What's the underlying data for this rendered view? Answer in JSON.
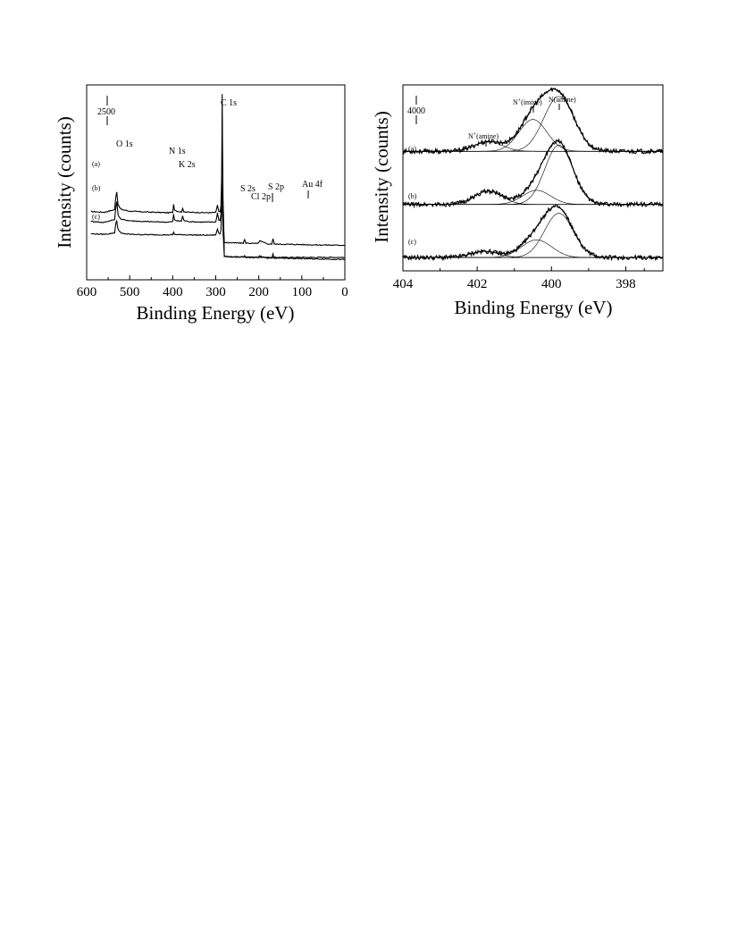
{
  "chart_data": [
    {
      "type": "line",
      "panel": "survey",
      "xlabel": "Binding Energy (eV)",
      "ylabel": "Intensity (counts)",
      "xlim": [
        600,
        0
      ],
      "x_reversed": true,
      "xticks": [
        600,
        500,
        400,
        300,
        200,
        100,
        0
      ],
      "scale_bar_label": "2500",
      "series": [
        {
          "name": "(a)",
          "x": [
            590,
            560,
            545,
            535,
            532,
            530,
            527,
            520,
            500,
            470,
            440,
            410,
            400,
            398,
            396,
            390,
            380,
            377,
            374,
            360,
            340,
            320,
            300,
            296,
            293,
            290,
            288,
            286,
            285,
            284,
            283,
            282,
            280,
            270,
            250,
            230,
            210,
            200,
            180,
            167,
            160,
            140,
            120,
            100,
            90,
            70,
            40,
            20,
            10,
            0
          ],
          "y": [
            2880,
            2830,
            2930,
            3000,
            3900,
            4150,
            3300,
            3020,
            2900,
            2860,
            2830,
            2800,
            2830,
            3350,
            3000,
            2900,
            2850,
            3050,
            2870,
            2830,
            2820,
            2800,
            2820,
            3300,
            2880,
            2860,
            3200,
            5200,
            10400,
            6200,
            3500,
            2600,
            0,
            -20,
            -30,
            -40,
            -40,
            -50,
            -60,
            -60,
            -60,
            -60,
            -60,
            -60,
            -60,
            -60,
            -60,
            -60,
            -60,
            -60
          ]
        },
        {
          "name": "(b)",
          "x": [
            590,
            560,
            545,
            535,
            532,
            530,
            527,
            520,
            500,
            470,
            440,
            410,
            400,
            398,
            396,
            390,
            380,
            377,
            374,
            360,
            340,
            320,
            300,
            296,
            293,
            290,
            288,
            286,
            285,
            284,
            283,
            282,
            280,
            270,
            250,
            236,
            233,
            230,
            210,
            202,
            198,
            180,
            170,
            167,
            164,
            140,
            120,
            100,
            90,
            70,
            40,
            20,
            10,
            0
          ],
          "y": [
            2250,
            2180,
            2300,
            2360,
            3200,
            3550,
            2650,
            2380,
            2290,
            2240,
            2220,
            2200,
            2230,
            2700,
            2350,
            2280,
            2260,
            2600,
            2300,
            2230,
            2210,
            2200,
            2210,
            2800,
            2350,
            2300,
            2700,
            4500,
            8600,
            5000,
            2700,
            1950,
            900,
            880,
            860,
            850,
            1080,
            860,
            830,
            830,
            1000,
            800,
            790,
            1150,
            790,
            780,
            770,
            760,
            750,
            740,
            730,
            720,
            720,
            720
          ]
        },
        {
          "name": "(c)",
          "x": [
            590,
            560,
            545,
            535,
            532,
            530,
            527,
            520,
            500,
            470,
            440,
            410,
            400,
            398,
            396,
            390,
            380,
            377,
            374,
            360,
            340,
            320,
            300,
            296,
            293,
            290,
            288,
            286,
            285,
            284,
            283,
            282,
            280,
            270,
            250,
            236,
            233,
            230,
            210,
            202,
            198,
            180,
            170,
            167,
            164,
            140,
            120,
            100,
            90,
            70,
            40,
            20,
            10,
            0
          ],
          "y": [
            1450,
            1420,
            1460,
            1520,
            2150,
            2250,
            1750,
            1480,
            1420,
            1400,
            1390,
            1380,
            1390,
            1540,
            1420,
            1400,
            1390,
            1400,
            1390,
            1380,
            1370,
            1360,
            1380,
            1750,
            1500,
            1450,
            1700,
            3000,
            6400,
            3300,
            1500,
            1000,
            0,
            -20,
            -40,
            -60,
            40,
            -60,
            -80,
            -80,
            20,
            -100,
            -110,
            140,
            -110,
            -120,
            -130,
            -140,
            -150,
            -160,
            -170,
            -180,
            -190,
            -200
          ]
        }
      ],
      "annotations": [
        "O 1s",
        "N 1s",
        "K 2s",
        "C 1s",
        "S 2s",
        "Cl 2p",
        "S 2p",
        "Au 4f",
        "(a)",
        "(b)",
        "(c)"
      ]
    },
    {
      "type": "line",
      "panel": "N1s",
      "xlabel": "Binding Energy (eV)",
      "ylabel": "Intensity (counts)",
      "xlim": [
        404,
        397
      ],
      "x_reversed": true,
      "xticks": [
        404,
        402,
        400,
        398
      ],
      "scale_bar_label": "4000",
      "traces": [
        {
          "name": "(a)",
          "offset": 12000,
          "components": [
            {
              "center": 399.8,
              "width": 0.65,
              "height": 6200
            },
            {
              "center": 400.5,
              "width": 0.6,
              "height": 3600
            },
            {
              "center": 401.7,
              "width": 0.6,
              "height": 1100
            }
          ]
        },
        {
          "name": "(b)",
          "offset": 6000,
          "components": [
            {
              "center": 399.8,
              "width": 0.6,
              "height": 6700
            },
            {
              "center": 400.4,
              "width": 0.6,
              "height": 1600
            },
            {
              "center": 401.7,
              "width": 0.6,
              "height": 1500
            }
          ]
        },
        {
          "name": "(c)",
          "offset": 0,
          "components": [
            {
              "center": 399.8,
              "width": 0.62,
              "height": 5000
            },
            {
              "center": 400.4,
              "width": 0.65,
              "height": 2000
            },
            {
              "center": 401.8,
              "width": 0.6,
              "height": 700
            }
          ]
        }
      ],
      "annotations": [
        "N+(imine)",
        "N(amine)",
        "N+(amine)",
        "(a)",
        "(b)",
        "(c)"
      ]
    }
  ],
  "labels": {
    "survey": {
      "ylabel": "Intensity (counts)",
      "xlabel": "Binding Energy (eV)",
      "scale": "2500",
      "o1s": "O 1s",
      "n1s": "N 1s",
      "k2s": "K 2s",
      "c1s": "C 1s",
      "s2s": "S 2s",
      "cl2p": "Cl 2p",
      "s2p": "S 2p",
      "au4f": "Au 4f",
      "a": "(a)",
      "b": "(b)",
      "c": "(c)"
    },
    "n1s": {
      "ylabel": "Intensity (counts)",
      "xlabel": "Binding Energy (eV)",
      "scale": "4000",
      "imine_base": "N",
      "imine_sup": "+",
      "imine_rest": "(imine)",
      "amine": "N(amine)",
      "amine_plus_base": "N",
      "amine_plus_sup": "+",
      "amine_plus_rest": "(amine)",
      "a": "(a)",
      "b": "(b)",
      "c": "(c)"
    }
  }
}
